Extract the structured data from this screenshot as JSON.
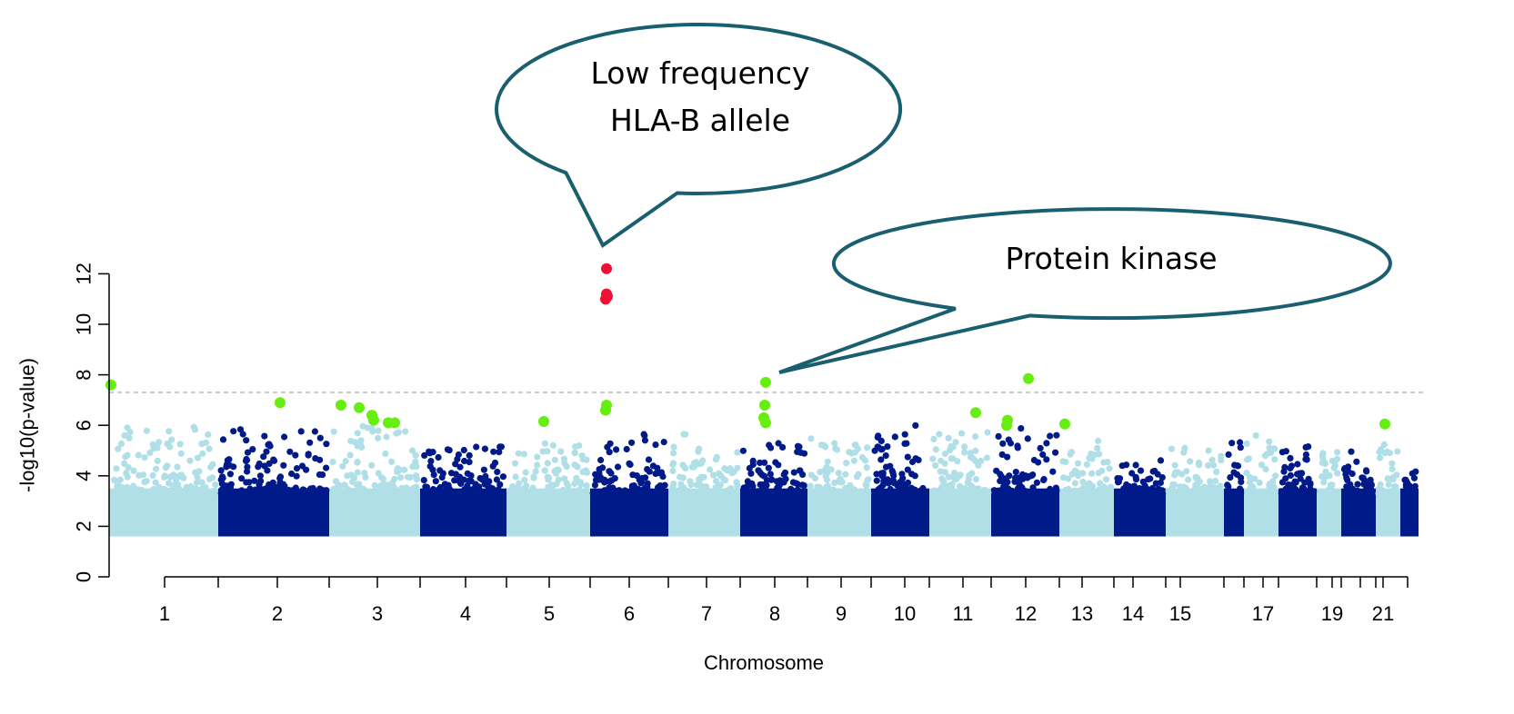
{
  "chart_data": {
    "type": "scatter",
    "title": "",
    "xlabel": "Chromosome",
    "ylabel": "-log10(p-value)",
    "ylim": [
      0,
      12.5
    ],
    "y_ticks": [
      0,
      2,
      4,
      6,
      8,
      10,
      12
    ],
    "x_tick_labels": [
      "1",
      "2",
      "3",
      "4",
      "5",
      "6",
      "7",
      "8",
      "9",
      "10",
      "11",
      "12",
      "13",
      "14",
      "15",
      "17",
      "19",
      "21"
    ],
    "significance_threshold": 7.3,
    "grid": false,
    "colors": {
      "chrom_light": "#b0dfe8",
      "chrom_dark": "#001a8a",
      "suggestive": "#66ee11",
      "top_hit": "#ee1133",
      "callout_border": "#1a5f70",
      "threshold_line": "#bbbbbb"
    },
    "chromosome_blocks": [
      {
        "chromosome": "1",
        "shade": "light",
        "peak": 6.0
      },
      {
        "chromosome": "2",
        "shade": "dark",
        "peak": 5.9
      },
      {
        "chromosome": "3",
        "shade": "light",
        "peak": 6.0
      },
      {
        "chromosome": "4",
        "shade": "dark",
        "peak": 5.2
      },
      {
        "chromosome": "5",
        "shade": "light",
        "peak": 5.3
      },
      {
        "chromosome": "6",
        "shade": "dark",
        "peak": 5.7
      },
      {
        "chromosome": "7",
        "shade": "light",
        "peak": 5.7
      },
      {
        "chromosome": "8",
        "shade": "dark",
        "peak": 5.3
      },
      {
        "chromosome": "9",
        "shade": "light",
        "peak": 5.6
      },
      {
        "chromosome": "10",
        "shade": "dark",
        "peak": 6.0
      },
      {
        "chromosome": "11",
        "shade": "light",
        "peak": 5.8
      },
      {
        "chromosome": "12",
        "shade": "dark",
        "peak": 5.9
      },
      {
        "chromosome": "13",
        "shade": "light",
        "peak": 5.4
      },
      {
        "chromosome": "14",
        "shade": "dark",
        "peak": 5.0
      },
      {
        "chromosome": "15",
        "shade": "light",
        "peak": 5.1
      },
      {
        "chromosome": "16",
        "shade": "dark",
        "peak": 5.5
      },
      {
        "chromosome": "17",
        "shade": "light",
        "peak": 5.8
      },
      {
        "chromosome": "18",
        "shade": "dark",
        "peak": 5.2
      },
      {
        "chromosome": "19",
        "shade": "light",
        "peak": 5.2
      },
      {
        "chromosome": "20",
        "shade": "dark",
        "peak": 5.0
      },
      {
        "chromosome": "21",
        "shade": "light",
        "peak": 5.3
      },
      {
        "chromosome": "22",
        "shade": "dark",
        "peak": 4.3
      }
    ],
    "highlighted_points": [
      {
        "chromosome": "1",
        "y": 7.6,
        "category": "suggestive"
      },
      {
        "chromosome": "2",
        "y": 6.9,
        "category": "suggestive"
      },
      {
        "chromosome": "3",
        "y": 6.8,
        "category": "suggestive"
      },
      {
        "chromosome": "3",
        "y": 6.7,
        "category": "suggestive"
      },
      {
        "chromosome": "3",
        "y": 6.4,
        "category": "suggestive"
      },
      {
        "chromosome": "3",
        "y": 6.2,
        "category": "suggestive"
      },
      {
        "chromosome": "3",
        "y": 6.1,
        "category": "suggestive"
      },
      {
        "chromosome": "3",
        "y": 6.1,
        "category": "suggestive"
      },
      {
        "chromosome": "5",
        "y": 6.15,
        "category": "suggestive"
      },
      {
        "chromosome": "6",
        "y": 6.8,
        "category": "suggestive"
      },
      {
        "chromosome": "6",
        "y": 6.6,
        "category": "suggestive"
      },
      {
        "chromosome": "6",
        "y": 12.2,
        "category": "top"
      },
      {
        "chromosome": "6",
        "y": 11.2,
        "category": "top"
      },
      {
        "chromosome": "6",
        "y": 11.1,
        "category": "top"
      },
      {
        "chromosome": "6",
        "y": 11.0,
        "category": "top"
      },
      {
        "chromosome": "8",
        "y": 7.7,
        "category": "suggestive"
      },
      {
        "chromosome": "8",
        "y": 6.8,
        "category": "suggestive"
      },
      {
        "chromosome": "8",
        "y": 6.3,
        "category": "suggestive"
      },
      {
        "chromosome": "8",
        "y": 6.1,
        "category": "suggestive"
      },
      {
        "chromosome": "11",
        "y": 6.5,
        "category": "suggestive"
      },
      {
        "chromosome": "12",
        "y": 6.2,
        "category": "suggestive"
      },
      {
        "chromosome": "12",
        "y": 6.0,
        "category": "suggestive"
      },
      {
        "chromosome": "12",
        "y": 7.85,
        "category": "suggestive"
      },
      {
        "chromosome": "13",
        "y": 6.05,
        "category": "suggestive"
      },
      {
        "chromosome": "21",
        "y": 6.05,
        "category": "suggestive"
      }
    ],
    "annotations": [
      {
        "lines": [
          "Low frequency",
          "HLA-B allele"
        ],
        "target_chromosome": "6",
        "target_y": 13.0
      },
      {
        "lines": [
          "Protein kinase"
        ],
        "target_chromosome": "8",
        "target_y": 8.0
      }
    ]
  }
}
